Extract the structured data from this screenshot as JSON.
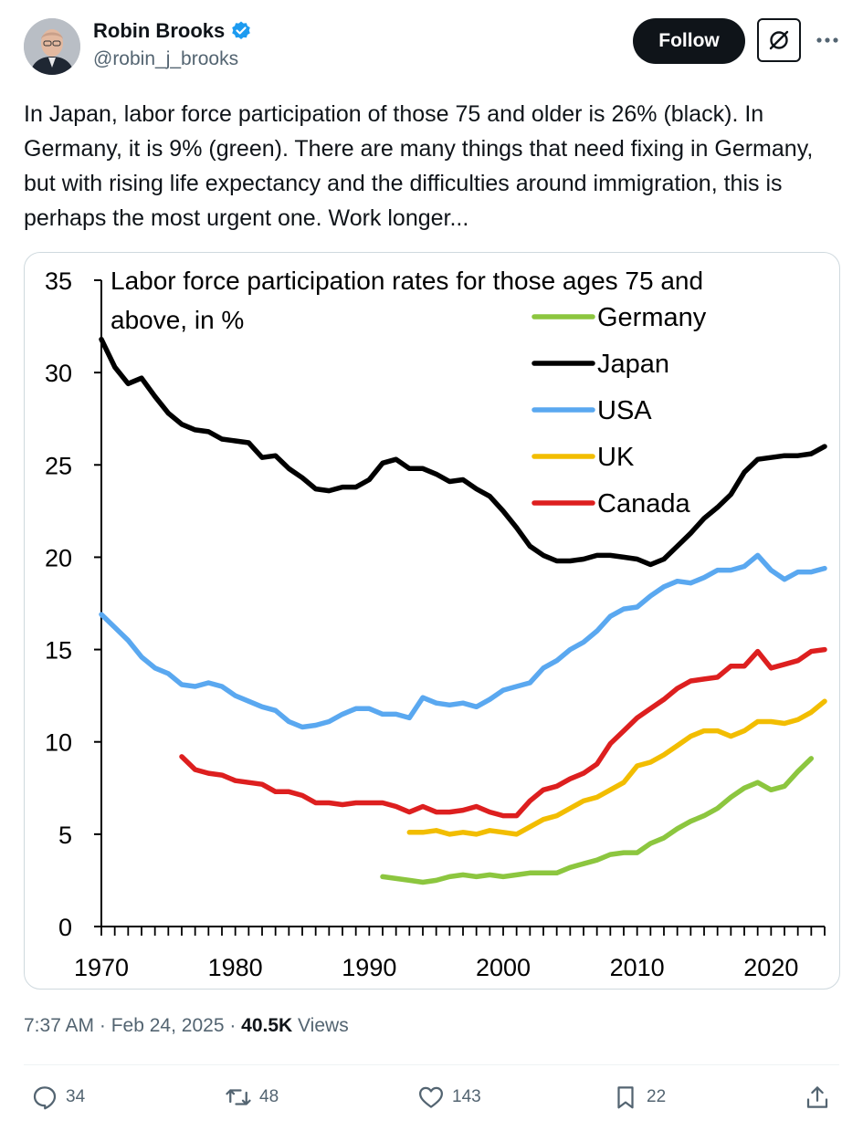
{
  "author": {
    "name": "Robin Brooks",
    "handle": "@robin_j_brooks",
    "verified_color": "#1d9bf0"
  },
  "header": {
    "follow_label": "Follow",
    "grok_icon": "grok-icon",
    "more_icon": "more-dots-icon"
  },
  "tweet": {
    "text": "In Japan, labor force participation of those 75 and older is 26% (black). In Germany, it is 9% (green). There are many things that need fixing in Germany, but with rising life expectancy and the difficulties around immigration, this is perhaps the most urgent one. Work longer..."
  },
  "chart_data": {
    "type": "line",
    "title": "Labor force participation rates for those ages 75 and above, in %",
    "title_lines": [
      "Labor force participation rates for those ages 75 and",
      "above, in %"
    ],
    "xlim": [
      1970,
      2024
    ],
    "ylim": [
      0,
      35
    ],
    "x_ticks": [
      1970,
      1980,
      1990,
      2000,
      2010,
      2020
    ],
    "y_ticks": [
      0,
      5,
      10,
      15,
      20,
      25,
      30,
      35
    ],
    "grid": false,
    "legend_position": "top-right",
    "series": [
      {
        "name": "Germany",
        "color": "#8cc63f",
        "x": [
          1991,
          1992,
          1993,
          1994,
          1995,
          1996,
          1997,
          1998,
          1999,
          2000,
          2001,
          2002,
          2003,
          2004,
          2005,
          2006,
          2007,
          2008,
          2009,
          2010,
          2011,
          2012,
          2013,
          2014,
          2015,
          2016,
          2017,
          2018,
          2019,
          2020,
          2021,
          2022,
          2023
        ],
        "y": [
          2.7,
          2.6,
          2.5,
          2.4,
          2.5,
          2.7,
          2.8,
          2.7,
          2.8,
          2.7,
          2.8,
          2.9,
          2.9,
          2.9,
          3.2,
          3.4,
          3.6,
          3.9,
          4.0,
          4.0,
          4.5,
          4.8,
          5.3,
          5.7,
          6.0,
          6.4,
          7.0,
          7.5,
          7.8,
          7.4,
          7.6,
          8.4,
          9.1
        ]
      },
      {
        "name": "Japan",
        "color": "#000000",
        "x": [
          1970,
          1971,
          1972,
          1973,
          1974,
          1975,
          1976,
          1977,
          1978,
          1979,
          1980,
          1981,
          1982,
          1983,
          1984,
          1985,
          1986,
          1987,
          1988,
          1989,
          1990,
          1991,
          1992,
          1993,
          1994,
          1995,
          1996,
          1997,
          1998,
          1999,
          2000,
          2001,
          2002,
          2003,
          2004,
          2005,
          2006,
          2007,
          2008,
          2009,
          2010,
          2011,
          2012,
          2013,
          2014,
          2015,
          2016,
          2017,
          2018,
          2019,
          2020,
          2021,
          2022,
          2023,
          2024
        ],
        "y": [
          31.8,
          30.3,
          29.4,
          29.7,
          28.7,
          27.8,
          27.2,
          26.9,
          26.8,
          26.4,
          26.3,
          26.2,
          25.4,
          25.5,
          24.8,
          24.3,
          23.7,
          23.6,
          23.8,
          23.8,
          24.2,
          25.1,
          25.3,
          24.8,
          24.8,
          24.5,
          24.1,
          24.2,
          23.7,
          23.3,
          22.5,
          21.6,
          20.6,
          20.1,
          19.8,
          19.8,
          19.9,
          20.1,
          20.1,
          20.0,
          19.9,
          19.6,
          19.9,
          20.6,
          21.3,
          22.1,
          22.7,
          23.4,
          24.6,
          25.3,
          25.4,
          25.5,
          25.5,
          25.6,
          26.0
        ]
      },
      {
        "name": "USA",
        "color": "#5aa8f0",
        "x": [
          1970,
          1971,
          1972,
          1973,
          1974,
          1975,
          1976,
          1977,
          1978,
          1979,
          1980,
          1981,
          1982,
          1983,
          1984,
          1985,
          1986,
          1987,
          1988,
          1989,
          1990,
          1991,
          1992,
          1993,
          1994,
          1995,
          1996,
          1997,
          1998,
          1999,
          2000,
          2001,
          2002,
          2003,
          2004,
          2005,
          2006,
          2007,
          2008,
          2009,
          2010,
          2011,
          2012,
          2013,
          2014,
          2015,
          2016,
          2017,
          2018,
          2019,
          2020,
          2021,
          2022,
          2023,
          2024
        ],
        "y": [
          16.9,
          16.2,
          15.5,
          14.6,
          14.0,
          13.7,
          13.1,
          13.0,
          13.2,
          13.0,
          12.5,
          12.2,
          11.9,
          11.7,
          11.1,
          10.8,
          10.9,
          11.1,
          11.5,
          11.8,
          11.8,
          11.5,
          11.5,
          11.3,
          12.4,
          12.1,
          12.0,
          12.1,
          11.9,
          12.3,
          12.8,
          13.0,
          13.2,
          14.0,
          14.4,
          15.0,
          15.4,
          16.0,
          16.8,
          17.2,
          17.3,
          17.9,
          18.4,
          18.7,
          18.6,
          18.9,
          19.3,
          19.3,
          19.5,
          20.1,
          19.3,
          18.8,
          19.2,
          19.2,
          19.4
        ]
      },
      {
        "name": "UK",
        "color": "#f2bd00",
        "x": [
          1993,
          1994,
          1995,
          1996,
          1997,
          1998,
          1999,
          2000,
          2001,
          2002,
          2003,
          2004,
          2005,
          2006,
          2007,
          2008,
          2009,
          2010,
          2011,
          2012,
          2013,
          2014,
          2015,
          2016,
          2017,
          2018,
          2019,
          2020,
          2021,
          2022,
          2023,
          2024
        ],
        "y": [
          5.1,
          5.1,
          5.2,
          5.0,
          5.1,
          5.0,
          5.2,
          5.1,
          5.0,
          5.4,
          5.8,
          6.0,
          6.4,
          6.8,
          7.0,
          7.4,
          7.8,
          8.7,
          8.9,
          9.3,
          9.8,
          10.3,
          10.6,
          10.6,
          10.3,
          10.6,
          11.1,
          11.1,
          11.0,
          11.2,
          11.6,
          12.2
        ]
      },
      {
        "name": "Canada",
        "color": "#dd1f1f",
        "x": [
          1976,
          1977,
          1978,
          1979,
          1980,
          1981,
          1982,
          1983,
          1984,
          1985,
          1986,
          1987,
          1988,
          1989,
          1990,
          1991,
          1992,
          1993,
          1994,
          1995,
          1996,
          1997,
          1998,
          1999,
          2000,
          2001,
          2002,
          2003,
          2004,
          2005,
          2006,
          2007,
          2008,
          2009,
          2010,
          2011,
          2012,
          2013,
          2014,
          2015,
          2016,
          2017,
          2018,
          2019,
          2020,
          2021,
          2022,
          2023,
          2024
        ],
        "y": [
          9.2,
          8.5,
          8.3,
          8.2,
          7.9,
          7.8,
          7.7,
          7.3,
          7.3,
          7.1,
          6.7,
          6.7,
          6.6,
          6.7,
          6.7,
          6.7,
          6.5,
          6.2,
          6.5,
          6.2,
          6.2,
          6.3,
          6.5,
          6.2,
          6.0,
          6.0,
          6.8,
          7.4,
          7.6,
          8.0,
          8.3,
          8.8,
          9.9,
          10.6,
          11.3,
          11.8,
          12.3,
          12.9,
          13.3,
          13.4,
          13.5,
          14.1,
          14.1,
          14.9,
          14.0,
          14.2,
          14.4,
          14.9,
          15.0
        ]
      }
    ]
  },
  "meta": {
    "time": "7:37 AM",
    "sep1": " · ",
    "date": "Feb 24, 2025",
    "sep2": " · ",
    "views_count": "40.5K",
    "views_label": " Views"
  },
  "actions": {
    "replies": "34",
    "reposts": "48",
    "likes": "143",
    "bookmarks": "22"
  }
}
